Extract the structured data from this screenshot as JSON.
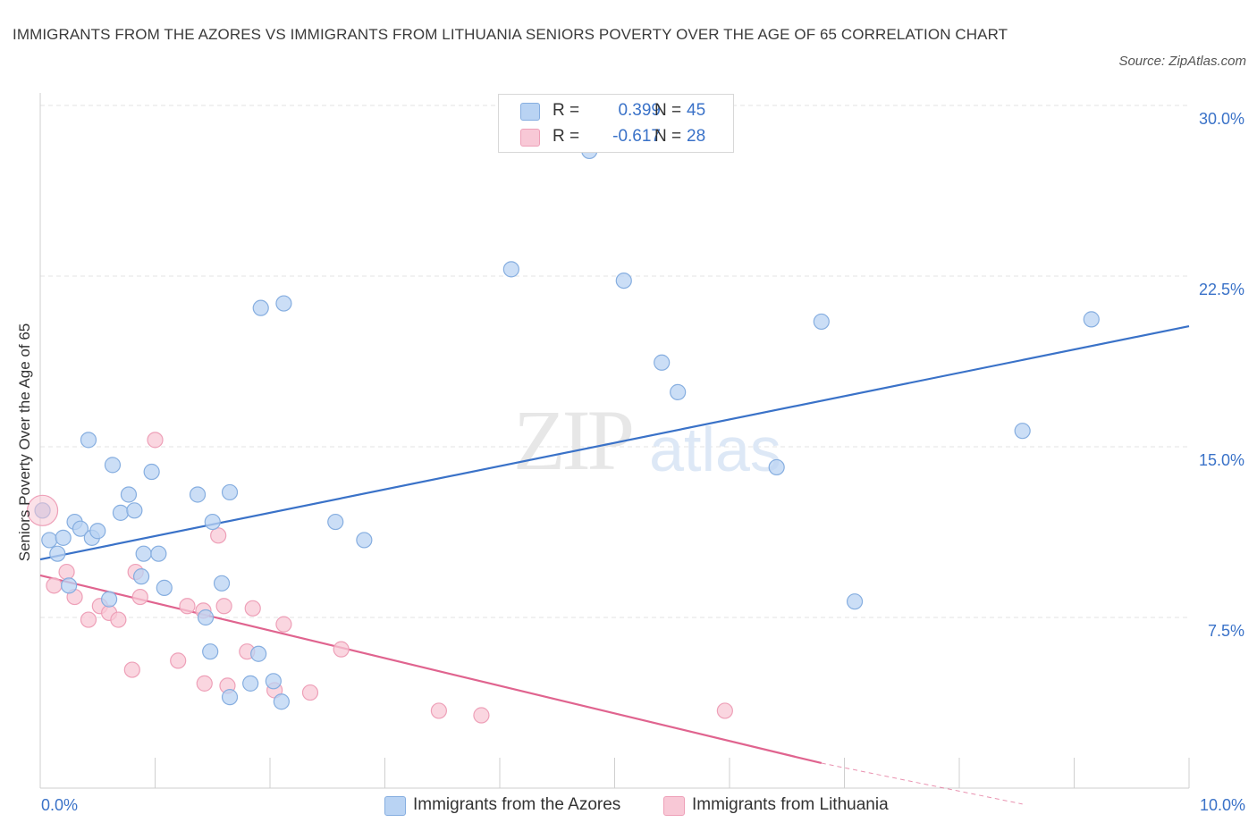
{
  "title": "IMMIGRANTS FROM THE AZORES VS IMMIGRANTS FROM LITHUANIA SENIORS POVERTY OVER THE AGE OF 65 CORRELATION CHART",
  "source": "Source: ZipAtlas.com",
  "watermark": {
    "zip": "ZIP",
    "atlas": "atlas"
  },
  "legend": {
    "r_label": "R =",
    "n_label": "N =",
    "rows": [
      {
        "r": "0.399",
        "n": "45"
      },
      {
        "r": "-0.617",
        "n": "28"
      }
    ]
  },
  "colors": {
    "blue_fill": "#b9d3f3",
    "blue_stroke": "#86aee0",
    "blue_line": "#3a72c8",
    "pink_fill": "#f8c8d6",
    "pink_stroke": "#eea0b8",
    "pink_line": "#e0648f",
    "axis_text": "#3a72c8",
    "grid": "#e3e3e3"
  },
  "chart_data": {
    "type": "scatter",
    "xlabel": "",
    "ylabel": "Seniors Poverty Over the Age of 65",
    "xlim": [
      0,
      10
    ],
    "ylim": [
      0,
      30
    ],
    "x_ticks": [
      {
        "value": 0,
        "label": "0.0%"
      },
      {
        "value": 10,
        "label": "10.0%"
      }
    ],
    "y_ticks": [
      {
        "value": 7.5,
        "label": "7.5%"
      },
      {
        "value": 15,
        "label": "15.0%"
      },
      {
        "value": 22.5,
        "label": "22.5%"
      },
      {
        "value": 30,
        "label": "30.0%"
      }
    ],
    "grid": true,
    "legend_position": "top-center",
    "series": [
      {
        "name": "Immigrants from the Azores",
        "color": "blue",
        "trend": {
          "x": [
            0,
            10
          ],
          "y": [
            10.05,
            20.3
          ]
        },
        "points": [
          [
            0.02,
            12.2
          ],
          [
            0.08,
            10.9
          ],
          [
            0.15,
            10.3
          ],
          [
            0.2,
            11.0
          ],
          [
            0.25,
            8.9
          ],
          [
            0.3,
            11.7
          ],
          [
            0.35,
            11.4
          ],
          [
            0.42,
            15.3
          ],
          [
            0.45,
            11.0
          ],
          [
            0.5,
            11.3
          ],
          [
            0.6,
            8.3
          ],
          [
            0.63,
            14.2
          ],
          [
            0.7,
            12.1
          ],
          [
            0.77,
            12.9
          ],
          [
            0.82,
            12.2
          ],
          [
            0.88,
            9.3
          ],
          [
            0.9,
            10.3
          ],
          [
            0.97,
            13.9
          ],
          [
            1.03,
            10.3
          ],
          [
            1.08,
            8.8
          ],
          [
            1.37,
            12.9
          ],
          [
            1.44,
            7.5
          ],
          [
            1.48,
            6.0
          ],
          [
            1.5,
            11.7
          ],
          [
            1.58,
            9.0
          ],
          [
            1.65,
            13.0
          ],
          [
            1.65,
            4.0
          ],
          [
            1.83,
            4.6
          ],
          [
            1.9,
            5.9
          ],
          [
            1.92,
            21.1
          ],
          [
            2.03,
            4.7
          ],
          [
            2.1,
            3.8
          ],
          [
            2.12,
            21.3
          ],
          [
            2.57,
            11.7
          ],
          [
            2.82,
            10.9
          ],
          [
            4.1,
            22.8
          ],
          [
            4.78,
            28.0
          ],
          [
            5.08,
            22.3
          ],
          [
            5.41,
            18.7
          ],
          [
            5.55,
            17.4
          ],
          [
            6.41,
            14.1
          ],
          [
            6.8,
            20.5
          ],
          [
            7.09,
            8.2
          ],
          [
            8.55,
            15.7
          ],
          [
            9.15,
            20.6
          ]
        ]
      },
      {
        "name": "Immigrants from Lithuania",
        "color": "pink",
        "trend": {
          "x": [
            0,
            6.8
          ],
          "y": [
            9.35,
            1.1
          ]
        },
        "trend_dashed": {
          "x": [
            6.8,
            8.55
          ],
          "y": [
            1.1,
            -0.7
          ]
        },
        "points": [
          [
            0.02,
            12.2
          ],
          [
            0.12,
            8.9
          ],
          [
            0.23,
            9.5
          ],
          [
            0.3,
            8.4
          ],
          [
            0.42,
            7.4
          ],
          [
            0.52,
            8.0
          ],
          [
            0.6,
            7.7
          ],
          [
            0.68,
            7.4
          ],
          [
            0.8,
            5.2
          ],
          [
            0.83,
            9.5
          ],
          [
            0.87,
            8.4
          ],
          [
            1.0,
            15.3
          ],
          [
            1.2,
            5.6
          ],
          [
            1.28,
            8.0
          ],
          [
            1.42,
            7.8
          ],
          [
            1.43,
            4.6
          ],
          [
            1.55,
            11.1
          ],
          [
            1.6,
            8.0
          ],
          [
            1.63,
            4.5
          ],
          [
            1.8,
            6.0
          ],
          [
            1.85,
            7.9
          ],
          [
            2.04,
            4.3
          ],
          [
            2.12,
            7.2
          ],
          [
            2.35,
            4.2
          ],
          [
            2.62,
            6.1
          ],
          [
            3.47,
            3.4
          ],
          [
            3.84,
            3.2
          ],
          [
            5.96,
            3.4
          ]
        ]
      }
    ]
  }
}
